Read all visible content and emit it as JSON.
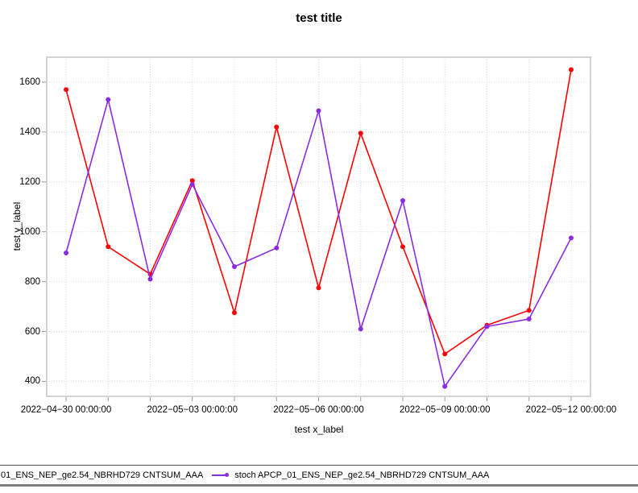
{
  "chart_data": {
    "type": "line",
    "title": "test title",
    "xlabel": "test x_label",
    "ylabel": "test y_label",
    "x": [
      "2022-04-30 00:00:00",
      "2022-05-01 00:00:00",
      "2022-05-02 00:00:00",
      "2022-05-03 00:00:00",
      "2022-05-04 00:00:00",
      "2022-05-05 00:00:00",
      "2022-05-06 00:00:00",
      "2022-05-07 00:00:00",
      "2022-05-08 00:00:00",
      "2022-05-09 00:00:00",
      "2022-05-10 00:00:00",
      "2022-05-11 00:00:00",
      "2022-05-12 00:00:00"
    ],
    "series": [
      {
        "name": "01_ENS_NEP_ge2.54_NBRHD729 CNTSUM_AAA",
        "color": "#FF0000",
        "values": [
          1570,
          940,
          830,
          1205,
          675,
          1420,
          775,
          1395,
          940,
          510,
          625,
          685,
          1650
        ]
      },
      {
        "name": "stoch APCP_01_ENS_NEP_ge2.54_NBRHD729 CNTSUM_AAA",
        "color": "#8A2BE2",
        "values": [
          915,
          1530,
          810,
          1190,
          860,
          935,
          1485,
          610,
          1125,
          380,
          620,
          650,
          975
        ]
      }
    ],
    "ylim": [
      340,
      1700
    ],
    "y_ticks": [
      400,
      600,
      800,
      1000,
      1200,
      1400,
      1600
    ],
    "x_major_tick_indices": [
      0,
      3,
      6,
      9,
      12
    ],
    "x_major_tick_labels": [
      "2022−04−30 00:00:00",
      "2022−05−03 00:00:00",
      "2022−05−06 00:00:00",
      "2022−05−09 00:00:00",
      "2022−05−12 00:00:00"
    ],
    "grid": true,
    "legend_position": "bottom",
    "grid_color": "#d9d9d9",
    "border_color": "#d3d3d3",
    "tick_color": "#999999"
  },
  "legend": {
    "entries": [
      {
        "label": "01_ENS_NEP_ge2.54_NBRHD729 CNTSUM_AAA",
        "color": "#FF0000",
        "marker_clipped": true
      },
      {
        "label": "stoch APCP_01_ENS_NEP_ge2.54_NBRHD729 CNTSUM_AAA",
        "color": "#8A2BE2",
        "marker_clipped": false
      }
    ]
  }
}
